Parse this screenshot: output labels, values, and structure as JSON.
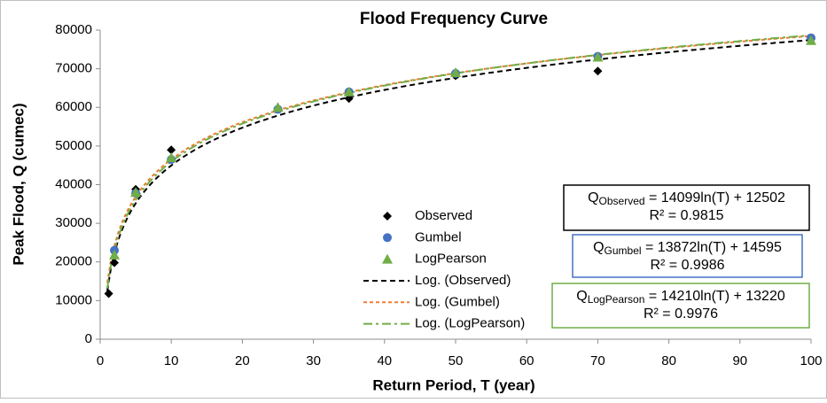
{
  "chart_data": {
    "type": "scatter",
    "title": "Flood Frequency Curve",
    "x_label": "Return Period, T (year)",
    "y_label": "Peak Flood, Q (cumec)",
    "xlim": [
      0,
      100
    ],
    "xticks": [
      0,
      10,
      20,
      30,
      40,
      50,
      60,
      70,
      80,
      90,
      100
    ],
    "ylim": [
      0,
      80000
    ],
    "yticks": [
      0,
      10000,
      20000,
      30000,
      40000,
      50000,
      60000,
      70000,
      80000
    ],
    "grid": false,
    "series": [
      {
        "name": "Observed",
        "color": "#000000",
        "marker": "diamond",
        "x": [
          1.2,
          2,
          5,
          10,
          25,
          35,
          50,
          70,
          100
        ],
        "values": [
          11800,
          19800,
          38800,
          49000,
          59500,
          62300,
          68200,
          69400,
          77700
        ],
        "trend": {
          "name": "Log. (Observed)",
          "color": "#000000",
          "dash": "6 4",
          "slope": 14099,
          "intercept": 12502,
          "equation": {
            "prefix": "Q",
            "subscript": "Observed",
            "rhs": " = 14099ln(T) + 12502",
            "r2": "R² = 0.9815",
            "border": "#000000"
          }
        }
      },
      {
        "name": "Gumbel",
        "color": "#4472c4",
        "marker": "circle",
        "x": [
          2,
          5,
          10,
          25,
          35,
          50,
          70,
          100
        ],
        "values": [
          23000,
          37800,
          46500,
          59500,
          64000,
          68800,
          73200,
          78000
        ],
        "trend": {
          "name": "Log. (Gumbel)",
          "color": "#ed7d31",
          "dash": "4 3",
          "slope": 13872,
          "intercept": 14595,
          "equation": {
            "prefix": "Q",
            "subscript": "Gumbel",
            "rhs": " = 13872ln(T) + 14595",
            "r2": "R² = 0.9986",
            "border": "#4472c4"
          }
        }
      },
      {
        "name": "LogPearson",
        "color": "#70ad47",
        "marker": "triangle",
        "x": [
          2,
          5,
          10,
          25,
          35,
          50,
          70,
          100
        ],
        "values": [
          21800,
          38000,
          47000,
          60000,
          64000,
          69000,
          73000,
          77300
        ],
        "trend": {
          "name": "Log. (LogPearson)",
          "color": "#70ad47",
          "dash": "10 4 3 4",
          "slope": 14210,
          "intercept": 13220,
          "equation": {
            "prefix": "Q",
            "subscript": "LogPearson",
            "rhs": " = 14210ln(T) + 13220",
            "r2": "R² = 0.9976",
            "border": "#70ad47"
          }
        }
      }
    ]
  }
}
